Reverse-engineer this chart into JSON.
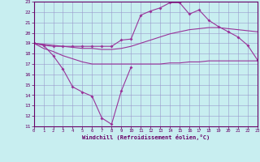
{
  "xlabel": "Windchill (Refroidissement éolien,°C)",
  "ylim": [
    11,
    23
  ],
  "xlim": [
    0,
    23
  ],
  "yticks": [
    11,
    12,
    13,
    14,
    15,
    16,
    17,
    18,
    19,
    20,
    21,
    22,
    23
  ],
  "xticks": [
    0,
    1,
    2,
    3,
    4,
    5,
    6,
    7,
    8,
    9,
    10,
    11,
    12,
    13,
    14,
    15,
    16,
    17,
    18,
    19,
    20,
    21,
    22,
    23
  ],
  "bg_color": "#c8eef0",
  "line_color": "#993399",
  "grid_color": "#9999cc",
  "line_wavy_x": [
    0,
    1,
    2,
    3,
    4,
    5,
    6,
    7,
    8,
    9,
    10
  ],
  "line_wavy_y": [
    19.0,
    18.8,
    17.8,
    16.5,
    14.8,
    14.3,
    13.9,
    11.8,
    11.2,
    14.4,
    16.7
  ],
  "line_flat_x": [
    0,
    1,
    2,
    3,
    4,
    5,
    6,
    7,
    8,
    9,
    10,
    11,
    12,
    13,
    14,
    15,
    16,
    17,
    18,
    19,
    20,
    21,
    22,
    23
  ],
  "line_flat_y": [
    19.0,
    18.5,
    18.2,
    17.8,
    17.5,
    17.2,
    17.0,
    17.0,
    17.0,
    17.0,
    17.0,
    17.0,
    17.0,
    17.0,
    17.1,
    17.1,
    17.2,
    17.2,
    17.3,
    17.3,
    17.3,
    17.3,
    17.3,
    17.3
  ],
  "line_mid_x": [
    0,
    1,
    2,
    3,
    4,
    5,
    6,
    7,
    8,
    9,
    10,
    11,
    12,
    13,
    14,
    15,
    16,
    17,
    18,
    19,
    20,
    21,
    22,
    23
  ],
  "line_mid_y": [
    19.0,
    18.9,
    18.8,
    18.7,
    18.6,
    18.5,
    18.5,
    18.4,
    18.4,
    18.5,
    18.7,
    19.0,
    19.3,
    19.6,
    19.9,
    20.1,
    20.3,
    20.4,
    20.5,
    20.5,
    20.4,
    20.3,
    20.2,
    20.1
  ],
  "line_top_x": [
    0,
    1,
    2,
    3,
    4,
    5,
    6,
    7,
    8,
    9,
    10,
    11,
    12,
    13,
    14,
    15,
    16,
    17,
    18,
    19,
    20,
    21,
    22,
    23
  ],
  "line_top_y": [
    19.0,
    18.8,
    18.7,
    18.7,
    18.7,
    18.7,
    18.7,
    18.7,
    18.7,
    19.3,
    19.4,
    21.7,
    22.1,
    22.4,
    22.9,
    22.9,
    21.8,
    22.2,
    21.2,
    20.6,
    20.1,
    19.6,
    18.8,
    17.4
  ],
  "marker": "D",
  "markersize": 2.0,
  "linewidth": 0.8
}
